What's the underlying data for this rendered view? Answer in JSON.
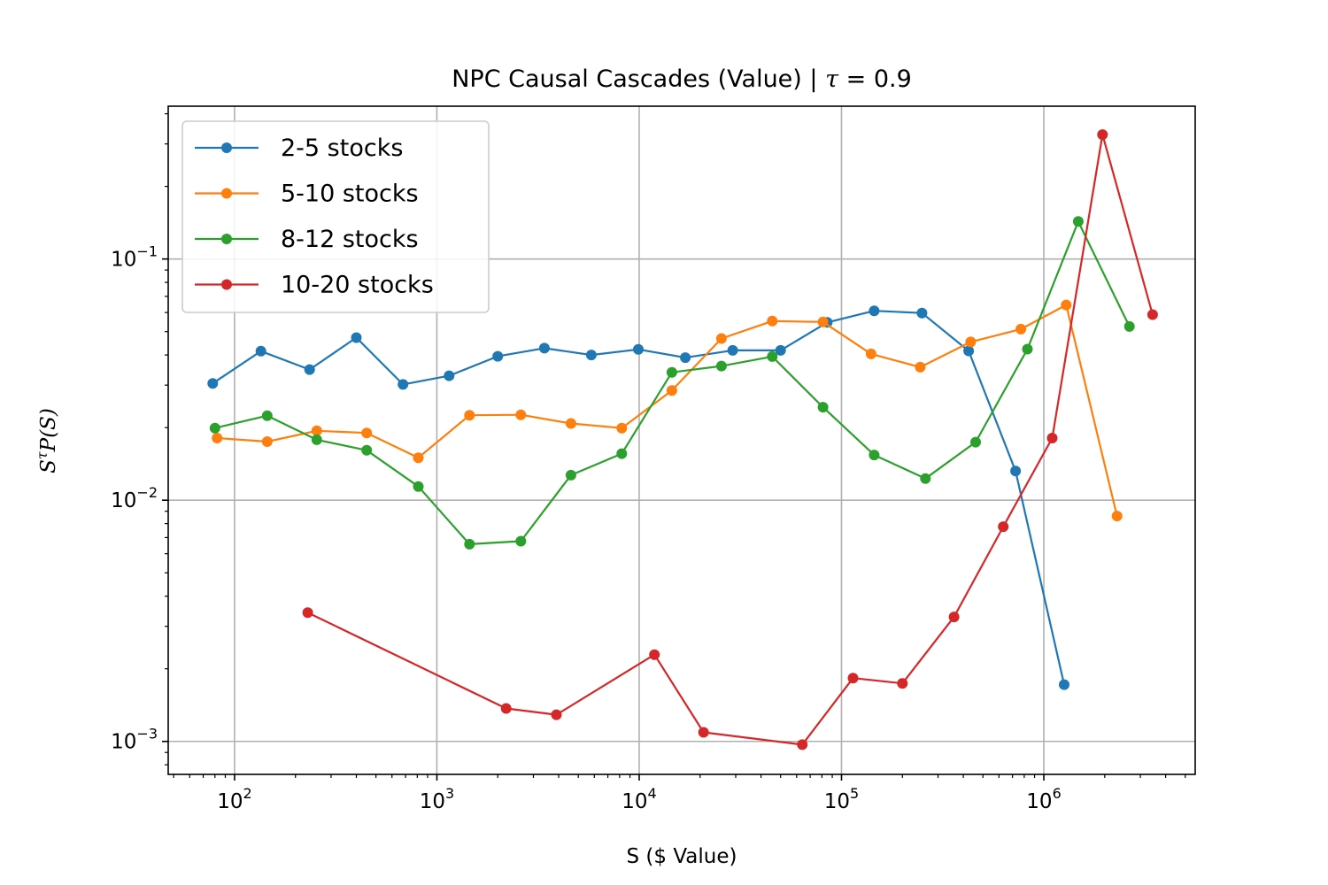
{
  "chart_data": {
    "type": "line",
    "title": "NPC Causal Cascades (Value) | τ = 0.9",
    "title_main": "NPC Causal Cascades (Value) | ",
    "title_tau": "τ",
    "title_eq": " = 0.9",
    "xlabel": "S ($ Value)",
    "ylabel_base": "S",
    "ylabel_sup": "τ",
    "ylabel_rest": "P(S)",
    "xscale": "log",
    "yscale": "log",
    "xlim": [
      47,
      5600000
    ],
    "ylim": [
      0.00073,
      0.43
    ],
    "grid": true,
    "legend_position": "top-left",
    "x_ticks": [
      {
        "value": 100,
        "base": "10",
        "exp": "2"
      },
      {
        "value": 1000,
        "base": "10",
        "exp": "3"
      },
      {
        "value": 10000,
        "base": "10",
        "exp": "4"
      },
      {
        "value": 100000,
        "base": "10",
        "exp": "5"
      },
      {
        "value": 1000000,
        "base": "10",
        "exp": "6"
      }
    ],
    "y_ticks": [
      {
        "value": 0.001,
        "base": "10",
        "exp": "−3"
      },
      {
        "value": 0.01,
        "base": "10",
        "exp": "−2"
      },
      {
        "value": 0.1,
        "base": "10",
        "exp": "−1"
      }
    ],
    "series": [
      {
        "name": "2-5 stocks",
        "color": "#1f77b4",
        "x": [
          78,
          135,
          235,
          400,
          680,
          1150,
          2000,
          3400,
          5800,
          9900,
          16900,
          29000,
          50000,
          85000,
          145000,
          250000,
          425000,
          725000,
          1260000
        ],
        "y": [
          0.0305,
          0.0415,
          0.0348,
          0.0472,
          0.0302,
          0.0328,
          0.0395,
          0.0427,
          0.04,
          0.0422,
          0.039,
          0.0418,
          0.0418,
          0.0546,
          0.061,
          0.0597,
          0.0416,
          0.0132,
          0.00172
        ]
      },
      {
        "name": "5-10 stocks",
        "color": "#ff7f0e",
        "x": [
          82,
          145,
          255,
          450,
          810,
          1450,
          2600,
          4600,
          8200,
          14500,
          25500,
          45500,
          81000,
          140000,
          245000,
          435000,
          770000,
          1290000,
          2300000
        ],
        "y": [
          0.0181,
          0.0175,
          0.0194,
          0.019,
          0.015,
          0.0225,
          0.0226,
          0.0208,
          0.0199,
          0.0285,
          0.0468,
          0.0553,
          0.0548,
          0.0404,
          0.0356,
          0.0453,
          0.0512,
          0.0645,
          0.0086
        ]
      },
      {
        "name": "8-12 stocks",
        "color": "#2ca02c",
        "x": [
          80,
          145,
          255,
          450,
          810,
          1450,
          2600,
          4600,
          8200,
          14500,
          25500,
          45500,
          81000,
          145000,
          260000,
          460000,
          830000,
          1480000,
          2650000
        ],
        "y": [
          0.0199,
          0.0224,
          0.0178,
          0.0161,
          0.0114,
          0.00657,
          0.00676,
          0.0127,
          0.0156,
          0.0339,
          0.036,
          0.0394,
          0.0243,
          0.0154,
          0.0123,
          0.0174,
          0.0423,
          0.143,
          0.0525
        ]
      },
      {
        "name": "10-20 stocks",
        "color": "#d62728",
        "x": [
          230,
          2200,
          3900,
          11900,
          20800,
          64000,
          114000,
          200000,
          360000,
          630000,
          1100000,
          1950000,
          3450000
        ],
        "y": [
          0.00342,
          0.00137,
          0.00129,
          0.00229,
          0.00109,
          0.00097,
          0.00183,
          0.00174,
          0.00328,
          0.00777,
          0.0181,
          0.328,
          0.0588
        ]
      }
    ]
  }
}
